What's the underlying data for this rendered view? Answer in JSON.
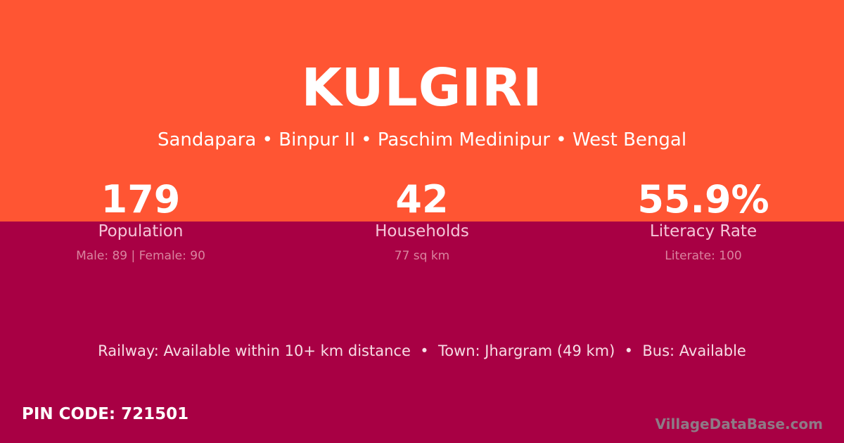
{
  "village": "KULGIRI",
  "location": "Sandapara • Binpur II • Paschim Medinipur • West Bengal",
  "stats": [
    {
      "value": "179",
      "label": "Population",
      "detail": "Male: 89 | Female: 90"
    },
    {
      "value": "42",
      "label": "Households",
      "detail": "77 sq km"
    },
    {
      "value": "55.9%",
      "label": "Literacy Rate",
      "detail": "Literate: 100"
    }
  ],
  "connectivity": "Railway: Available within 10+ km distance  •  Town: Jhargram (49 km)  •  Bus: Available",
  "pin": "PIN CODE: 721501",
  "brand": "VillageDataBase.com",
  "colors": {
    "top": "#FF5533",
    "bottom": "#A80044"
  }
}
